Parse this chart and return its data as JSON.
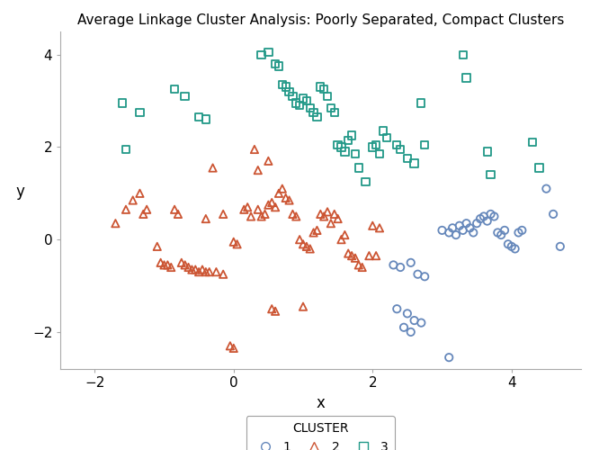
{
  "title": "Average Linkage Cluster Analysis: Poorly Separated, Compact Clusters",
  "xlabel": "x",
  "ylabel": "y",
  "xlim": [
    -2.5,
    5.0
  ],
  "ylim": [
    -2.8,
    4.5
  ],
  "xticks": [
    -2,
    0,
    2,
    4
  ],
  "yticks": [
    -2,
    0,
    2,
    4
  ],
  "cluster1_color": "#6688BB",
  "cluster2_color": "#CC5533",
  "cluster3_color": "#229988",
  "background_color": "#FFFFFF",
  "cluster1": [
    [
      3.0,
      0.2
    ],
    [
      3.1,
      0.15
    ],
    [
      3.15,
      0.25
    ],
    [
      3.2,
      0.1
    ],
    [
      3.25,
      0.3
    ],
    [
      3.3,
      0.2
    ],
    [
      3.35,
      0.35
    ],
    [
      3.4,
      0.25
    ],
    [
      3.45,
      0.15
    ],
    [
      3.5,
      0.35
    ],
    [
      3.55,
      0.45
    ],
    [
      3.6,
      0.5
    ],
    [
      3.65,
      0.4
    ],
    [
      3.7,
      0.55
    ],
    [
      3.75,
      0.5
    ],
    [
      3.8,
      0.15
    ],
    [
      3.85,
      0.1
    ],
    [
      3.9,
      0.2
    ],
    [
      3.95,
      -0.1
    ],
    [
      4.0,
      -0.15
    ],
    [
      4.05,
      -0.2
    ],
    [
      4.1,
      0.15
    ],
    [
      4.15,
      0.2
    ],
    [
      2.3,
      -0.55
    ],
    [
      2.4,
      -0.6
    ],
    [
      2.55,
      -0.5
    ],
    [
      2.65,
      -0.75
    ],
    [
      2.75,
      -0.8
    ],
    [
      2.35,
      -1.5
    ],
    [
      2.5,
      -1.6
    ],
    [
      2.6,
      -1.75
    ],
    [
      2.7,
      -1.8
    ],
    [
      2.45,
      -1.9
    ],
    [
      2.55,
      -2.0
    ],
    [
      3.1,
      -2.55
    ],
    [
      4.5,
      1.1
    ],
    [
      4.6,
      0.55
    ],
    [
      4.7,
      -0.15
    ]
  ],
  "cluster2": [
    [
      -1.7,
      0.35
    ],
    [
      -1.55,
      0.65
    ],
    [
      -1.45,
      0.85
    ],
    [
      -1.35,
      1.0
    ],
    [
      -1.3,
      0.55
    ],
    [
      -1.25,
      0.65
    ],
    [
      -1.1,
      -0.15
    ],
    [
      -1.05,
      -0.5
    ],
    [
      -1.0,
      -0.55
    ],
    [
      -0.95,
      -0.55
    ],
    [
      -0.9,
      -0.6
    ],
    [
      -0.85,
      0.65
    ],
    [
      -0.8,
      0.55
    ],
    [
      -0.75,
      -0.5
    ],
    [
      -0.7,
      -0.55
    ],
    [
      -0.65,
      -0.6
    ],
    [
      -0.6,
      -0.65
    ],
    [
      -0.55,
      -0.65
    ],
    [
      -0.5,
      -0.7
    ],
    [
      -0.45,
      -0.65
    ],
    [
      -0.4,
      -0.7
    ],
    [
      -0.35,
      -0.7
    ],
    [
      -0.25,
      -0.7
    ],
    [
      -0.15,
      -0.75
    ],
    [
      0.0,
      -0.05
    ],
    [
      0.05,
      -0.1
    ],
    [
      0.15,
      0.65
    ],
    [
      0.2,
      0.7
    ],
    [
      0.25,
      0.5
    ],
    [
      0.35,
      0.65
    ],
    [
      0.4,
      0.5
    ],
    [
      0.45,
      0.55
    ],
    [
      0.5,
      0.75
    ],
    [
      0.55,
      0.8
    ],
    [
      0.6,
      0.7
    ],
    [
      0.65,
      1.0
    ],
    [
      0.7,
      1.1
    ],
    [
      0.75,
      0.9
    ],
    [
      0.8,
      0.85
    ],
    [
      0.85,
      0.55
    ],
    [
      0.9,
      0.5
    ],
    [
      0.95,
      0.0
    ],
    [
      1.0,
      -0.1
    ],
    [
      1.05,
      -0.15
    ],
    [
      1.1,
      -0.2
    ],
    [
      1.15,
      0.15
    ],
    [
      1.2,
      0.2
    ],
    [
      1.25,
      0.55
    ],
    [
      1.3,
      0.5
    ],
    [
      1.35,
      0.6
    ],
    [
      1.4,
      0.35
    ],
    [
      1.45,
      0.55
    ],
    [
      1.5,
      0.45
    ],
    [
      1.55,
      0.0
    ],
    [
      1.6,
      0.1
    ],
    [
      1.65,
      -0.3
    ],
    [
      1.7,
      -0.35
    ],
    [
      1.75,
      -0.4
    ],
    [
      1.8,
      -0.55
    ],
    [
      1.85,
      -0.6
    ],
    [
      1.95,
      -0.35
    ],
    [
      2.05,
      -0.35
    ],
    [
      2.0,
      0.3
    ],
    [
      2.1,
      0.25
    ],
    [
      0.55,
      -1.5
    ],
    [
      0.6,
      -1.55
    ],
    [
      -0.05,
      -2.3
    ],
    [
      0.0,
      -2.35
    ],
    [
      1.0,
      -1.45
    ],
    [
      -0.3,
      1.55
    ],
    [
      0.3,
      1.95
    ],
    [
      0.35,
      1.5
    ],
    [
      0.5,
      1.7
    ],
    [
      -0.4,
      0.45
    ],
    [
      -0.15,
      0.55
    ]
  ],
  "cluster3": [
    [
      -1.6,
      2.95
    ],
    [
      -1.35,
      2.75
    ],
    [
      -1.55,
      1.95
    ],
    [
      -0.85,
      3.25
    ],
    [
      -0.7,
      3.1
    ],
    [
      -0.5,
      2.65
    ],
    [
      -0.4,
      2.6
    ],
    [
      0.4,
      4.0
    ],
    [
      0.5,
      4.05
    ],
    [
      0.6,
      3.8
    ],
    [
      0.65,
      3.75
    ],
    [
      0.7,
      3.35
    ],
    [
      0.75,
      3.3
    ],
    [
      0.8,
      3.2
    ],
    [
      0.85,
      3.1
    ],
    [
      0.9,
      2.95
    ],
    [
      0.95,
      2.9
    ],
    [
      1.0,
      3.05
    ],
    [
      1.05,
      3.0
    ],
    [
      1.1,
      2.85
    ],
    [
      1.15,
      2.75
    ],
    [
      1.2,
      2.65
    ],
    [
      1.25,
      3.3
    ],
    [
      1.3,
      3.25
    ],
    [
      1.35,
      3.1
    ],
    [
      1.4,
      2.85
    ],
    [
      1.45,
      2.75
    ],
    [
      1.5,
      2.05
    ],
    [
      1.55,
      2.0
    ],
    [
      1.6,
      1.9
    ],
    [
      1.65,
      2.15
    ],
    [
      1.7,
      2.25
    ],
    [
      1.75,
      1.85
    ],
    [
      1.8,
      1.55
    ],
    [
      1.9,
      1.25
    ],
    [
      2.0,
      2.0
    ],
    [
      2.05,
      2.05
    ],
    [
      2.1,
      1.85
    ],
    [
      2.15,
      2.35
    ],
    [
      2.2,
      2.2
    ],
    [
      2.35,
      2.05
    ],
    [
      2.4,
      1.95
    ],
    [
      2.5,
      1.75
    ],
    [
      2.6,
      1.65
    ],
    [
      2.7,
      2.95
    ],
    [
      3.3,
      4.0
    ],
    [
      3.35,
      3.5
    ],
    [
      3.65,
      1.9
    ],
    [
      3.7,
      1.4
    ],
    [
      4.3,
      2.1
    ],
    [
      4.4,
      1.55
    ],
    [
      2.75,
      2.05
    ]
  ]
}
